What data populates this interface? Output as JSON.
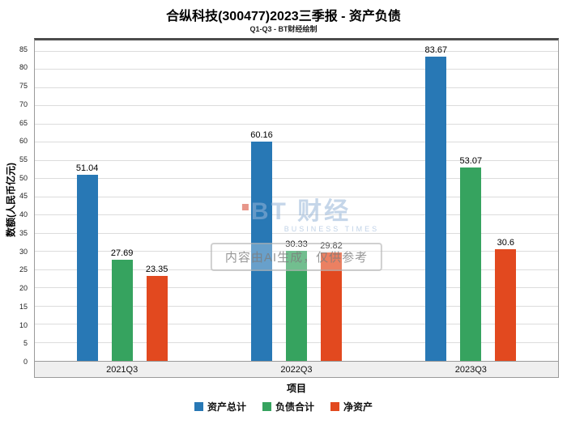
{
  "title": "合纵科技(300477)2023三季报 - 资产负债",
  "subtitle": "Q1-Q3 - BT财经绘制",
  "chart_data": {
    "type": "bar",
    "categories": [
      "2021Q3",
      "2022Q3",
      "2023Q3"
    ],
    "series": [
      {
        "name": "资产总计",
        "color": "#2878b5",
        "values": [
          51.04,
          60.16,
          83.67
        ]
      },
      {
        "name": "负债合计",
        "color": "#36a35f",
        "values": [
          27.69,
          30.33,
          53.07
        ]
      },
      {
        "name": "净资产",
        "color": "#e2491f",
        "values": [
          23.35,
          29.82,
          30.6
        ]
      }
    ],
    "title": "合纵科技(300477)2023三季报 - 资产负债",
    "xlabel": "项目",
    "ylabel": "数额(人民币亿元)",
    "ylim": [
      0,
      88
    ],
    "yticks": [
      0,
      5,
      10,
      15,
      20,
      25,
      30,
      35,
      40,
      45,
      50,
      55,
      60,
      65,
      70,
      75,
      80,
      85
    ],
    "grid": true,
    "legend_position": "bottom"
  },
  "watermark": {
    "logo_text": "BT 财经",
    "logo_sub": "BUSINESS TIMES",
    "disclaimer": "内容由AI生成，仅供参考"
  }
}
